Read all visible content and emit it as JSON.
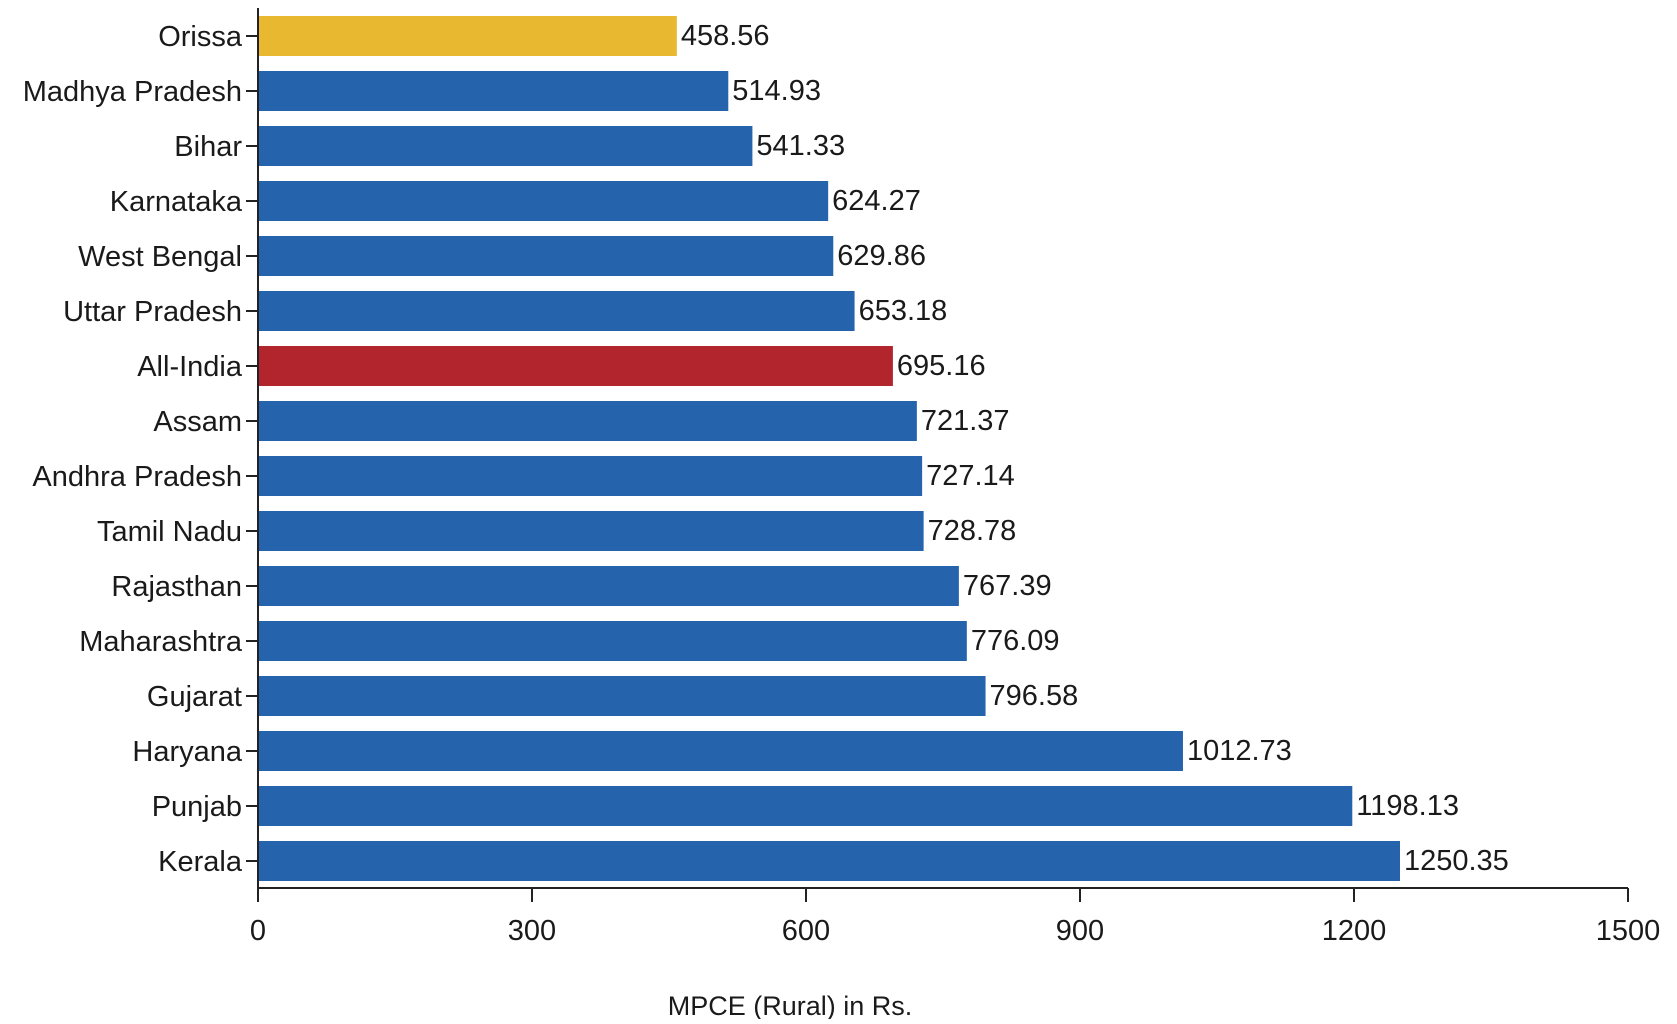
{
  "chart_data": {
    "type": "bar",
    "orientation": "horizontal",
    "categories": [
      "Orissa",
      "Madhya Pradesh",
      "Bihar",
      "Karnataka",
      "West Bengal",
      "Uttar Pradesh",
      "All-India",
      "Assam",
      "Andhra Pradesh",
      "Tamil Nadu",
      "Rajasthan",
      "Maharashtra",
      "Gujarat",
      "Haryana",
      "Punjab",
      "Kerala"
    ],
    "values": [
      458.56,
      514.93,
      541.33,
      624.27,
      629.86,
      653.18,
      695.16,
      721.37,
      727.14,
      728.78,
      767.39,
      776.09,
      796.58,
      1012.73,
      1198.13,
      1250.35
    ],
    "value_labels": [
      "458.56",
      "514.93",
      "541.33",
      "624.27",
      "629.86",
      "653.18",
      "695.16",
      "721.37",
      "727.14",
      "728.78",
      "767.39",
      "776.09",
      "796.58",
      "1012.73",
      "1198.13",
      "1250.35"
    ],
    "bar_colors": [
      "#E8B830",
      "#2563AC",
      "#2563AC",
      "#2563AC",
      "#2563AC",
      "#2563AC",
      "#B3252D",
      "#2563AC",
      "#2563AC",
      "#2563AC",
      "#2563AC",
      "#2563AC",
      "#2563AC",
      "#2563AC",
      "#2563AC",
      "#2563AC"
    ],
    "title": "",
    "xlabel": "MPCE (Rural) in Rs.",
    "ylabel": "",
    "xlim": [
      0,
      1500
    ],
    "xticks": [
      0,
      300,
      600,
      900,
      1200,
      1500
    ],
    "xtick_labels": [
      "0",
      "300",
      "600",
      "900",
      "1200",
      "1500"
    ],
    "grid": false,
    "legend": "none"
  }
}
